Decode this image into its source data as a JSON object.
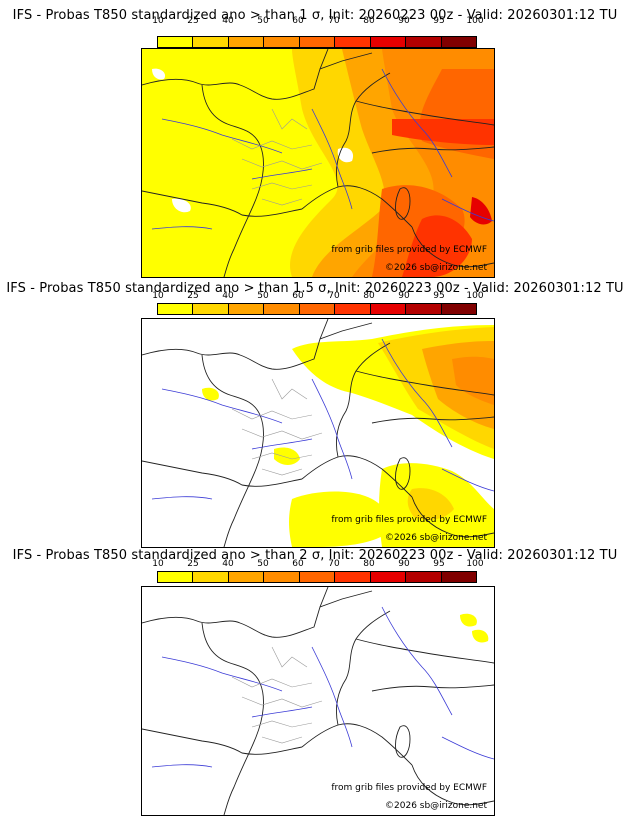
{
  "colorbar": {
    "ticks": [
      "10",
      "25",
      "40",
      "50",
      "60",
      "70",
      "80",
      "90",
      "95",
      "100"
    ],
    "colors": [
      "#ffff00",
      "#ffd700",
      "#ffa500",
      "#ff8c00",
      "#ff6600",
      "#ff3300",
      "#e60000",
      "#b30000",
      "#800000"
    ]
  },
  "panels": [
    {
      "title": "IFS - Probas T850  standardized ano > than 1 σ, Init: 20260223 00z - Valid: 20260301:12 TU",
      "credit_grib": "from grib files provided by ECMWF",
      "credit_copyright": "©2026 sb@irizone.net"
    },
    {
      "title": "IFS - Probas T850  standardized ano > than 1.5 σ, Init: 20260223 00z - Valid: 20260301:12 TU",
      "credit_grib": "from grib files provided by ECMWF",
      "credit_copyright": "©2026 sb@irizone.net"
    },
    {
      "title": "IFS - Probas T850  standardized ano > than 2 σ, Init: 20260223 00z - Valid: 20260301:12 TU",
      "credit_grib": "from grib files provided by ECMWF",
      "credit_copyright": "©2026 sb@irizone.net"
    }
  ]
}
